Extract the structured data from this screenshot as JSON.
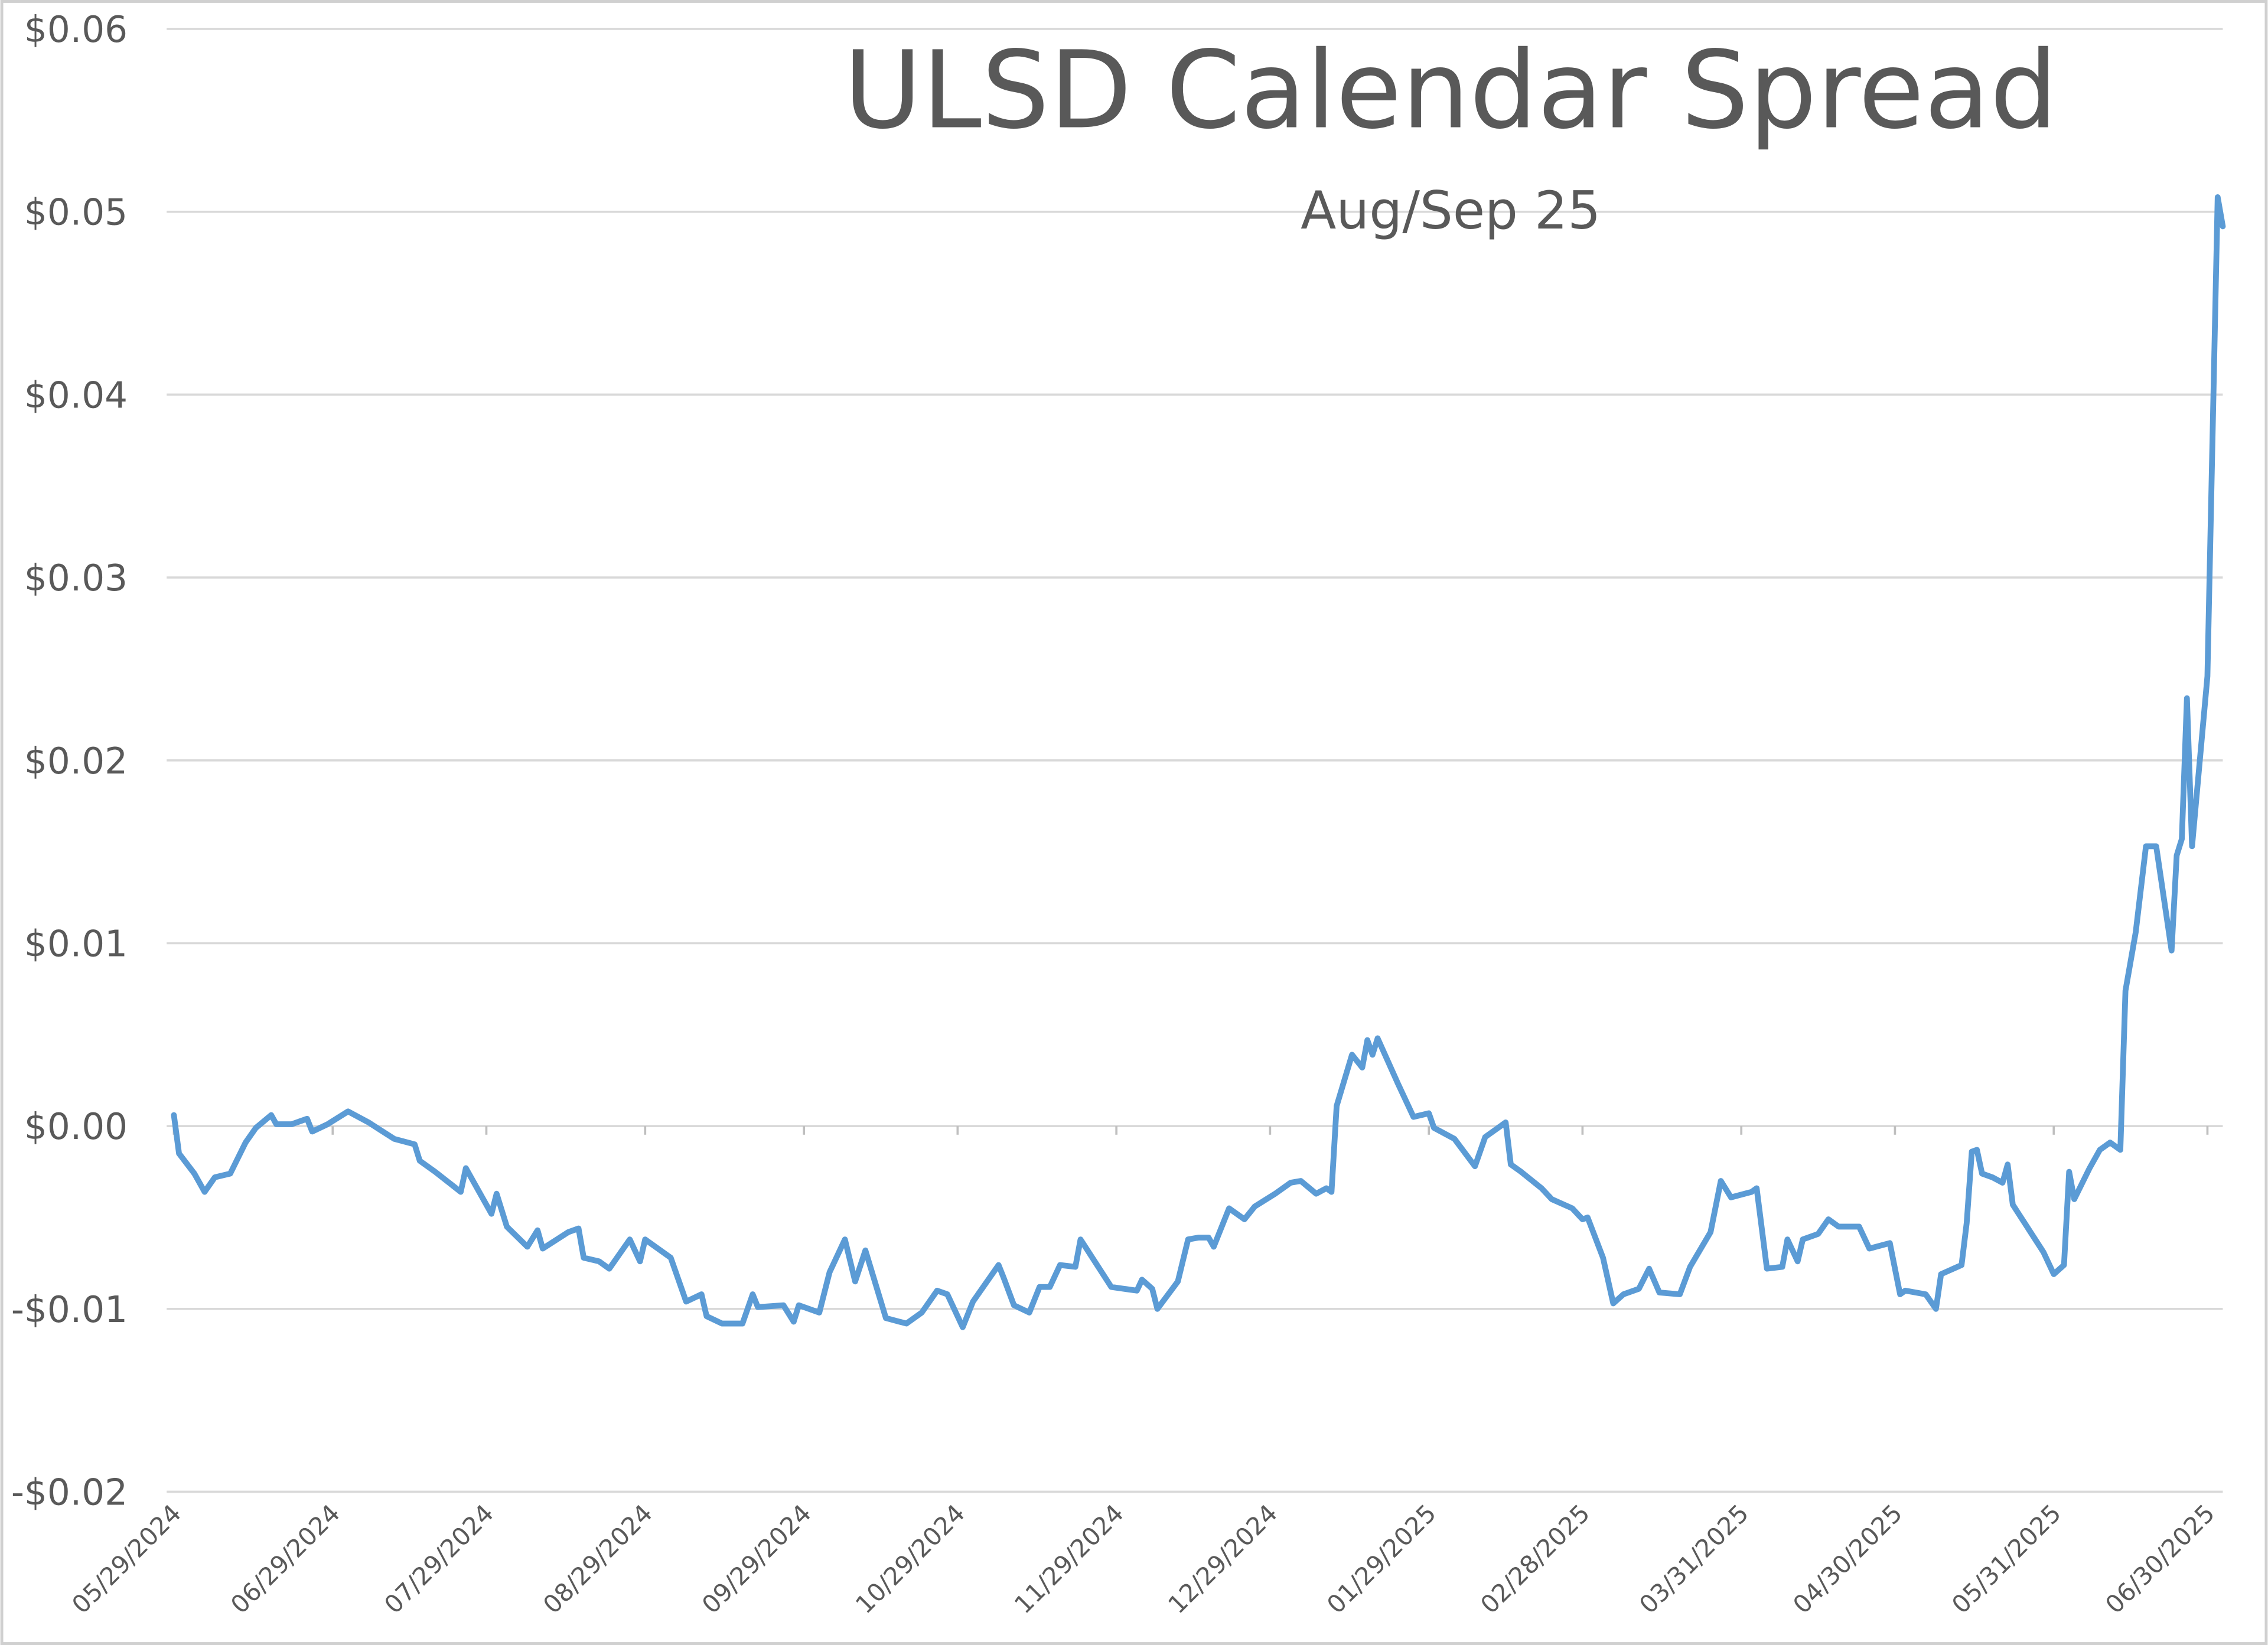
{
  "chart_data": {
    "type": "line",
    "title": "ULSD Calendar Spread",
    "subtitle": "Aug/Sep 25",
    "x": [
      "05/29/2024",
      "05/30/2024",
      "06/02/2024",
      "06/04/2024",
      "06/06/2024",
      "06/09/2024",
      "06/12/2024",
      "06/14/2024",
      "06/17/2024",
      "06/18/2024",
      "06/21/2024",
      "06/24/2024",
      "06/25/2024",
      "06/28/2024",
      "07/02/2024",
      "07/06/2024",
      "07/11/2024",
      "07/15/2024",
      "07/16/2024",
      "07/19/2024",
      "07/24/2024",
      "07/25/2024",
      "07/30/2024",
      "07/31/2024",
      "08/02/2024",
      "08/06/2024",
      "08/08/2024",
      "08/09/2024",
      "08/14/2024",
      "08/16/2024",
      "08/17/2024",
      "08/20/2024",
      "08/22/2024",
      "08/26/2024",
      "08/28/2024",
      "08/29/2024",
      "09/03/2024",
      "09/06/2024",
      "09/09/2024",
      "09/10/2024",
      "09/13/2024",
      "09/17/2024",
      "09/19/2024",
      "09/20/2024",
      "09/25/2024",
      "09/27/2024",
      "09/28/2024",
      "10/02/2024",
      "10/04/2024",
      "10/07/2024",
      "10/09/2024",
      "10/11/2024",
      "10/15/2024",
      "10/19/2024",
      "10/22/2024",
      "10/25/2024",
      "10/27/2024",
      "10/30/2024",
      "11/01/2024",
      "11/06/2024",
      "11/07/2024",
      "11/09/2024",
      "11/12/2024",
      "11/14/2024",
      "11/16/2024",
      "11/18/2024",
      "11/21/2024",
      "11/22/2024",
      "11/28/2024",
      "12/03/2024",
      "12/04/2024",
      "12/06/2024",
      "12/07/2024",
      "12/11/2024",
      "12/13/2024",
      "12/15/2024",
      "12/17/2024",
      "12/18/2024",
      "12/21/2024",
      "12/24/2024",
      "12/26/2024",
      "12/30/2024",
      "01/02/2025",
      "01/04/2025",
      "01/07/2025",
      "01/09/2025",
      "01/10/2025",
      "01/11/2025",
      "01/14/2025",
      "01/16/2025",
      "01/17/2025",
      "01/18/2025",
      "01/19/2025",
      "01/23/2025",
      "01/26/2025",
      "01/29/2025",
      "01/30/2025",
      "02/03/2025",
      "02/07/2025",
      "02/09/2025",
      "02/13/2025",
      "02/14/2025",
      "02/16/2025",
      "02/20/2025",
      "02/22/2025",
      "02/26/2025",
      "02/28/2025",
      "03/01/2025",
      "03/04/2025",
      "03/06/2025",
      "03/08/2025",
      "03/11/2025",
      "03/13/2025",
      "03/15/2025",
      "03/19/2025",
      "03/21/2025",
      "03/25/2025",
      "03/27/2025",
      "03/29/2025",
      "04/02/2025",
      "04/03/2025",
      "04/05/2025",
      "04/08/2025",
      "04/09/2025",
      "04/11/2025",
      "04/12/2025",
      "04/15/2025",
      "04/17/2025",
      "04/19/2025",
      "04/23/2025",
      "04/25/2025",
      "04/29/2025",
      "05/01/2025",
      "05/02/2025",
      "05/06/2025",
      "05/08/2025",
      "05/09/2025",
      "05/13/2025",
      "05/14/2025",
      "05/15/2025",
      "05/16/2025",
      "05/17/2025",
      "05/19/2025",
      "05/21/2025",
      "05/22/2025",
      "05/23/2025",
      "05/29/2025",
      "05/31/2025",
      "06/02/2025",
      "06/03/2025",
      "06/04/2025",
      "06/07/2025",
      "06/09/2025",
      "06/11/2025",
      "06/13/2025",
      "06/14/2025",
      "06/16/2025",
      "06/18/2025",
      "06/20/2025",
      "06/23/2025",
      "06/24/2025",
      "06/25/2025",
      "06/26/2025",
      "06/27/2025",
      "06/30/2025",
      "07/02/2025",
      "07/03/2025"
    ],
    "series": [
      {
        "color": "#5b9bd5",
        "values": [
          0.0006,
          -0.0015,
          -0.0026,
          -0.0036,
          -0.0028,
          -0.0026,
          -0.0009,
          -0.0001,
          0.0006,
          0.0001,
          0.0001,
          0.0004,
          -0.0003,
          0.0001,
          0.0008,
          0.0002,
          -0.0007,
          -0.001,
          -0.0019,
          -0.0025,
          -0.0036,
          -0.0023,
          -0.0048,
          -0.0037,
          -0.0055,
          -0.0066,
          -0.0057,
          -0.0067,
          -0.0058,
          -0.0056,
          -0.0072,
          -0.0074,
          -0.0078,
          -0.0062,
          -0.0074,
          -0.0062,
          -0.0072,
          -0.0096,
          -0.0092,
          -0.0104,
          -0.0108,
          -0.0108,
          -0.0092,
          -0.0099,
          -0.0098,
          -0.0107,
          -0.0098,
          -0.0102,
          -0.008,
          -0.0062,
          -0.0085,
          -0.0068,
          -0.0105,
          -0.0108,
          -0.0102,
          -0.009,
          -0.0092,
          -0.011,
          -0.0096,
          -0.0076,
          -0.0083,
          -0.0098,
          -0.0102,
          -0.0088,
          -0.0088,
          -0.0076,
          -0.0077,
          -0.0062,
          -0.0088,
          -0.009,
          -0.0084,
          -0.0089,
          -0.01,
          -0.0085,
          -0.0062,
          -0.0061,
          -0.0061,
          -0.0066,
          -0.0045,
          -0.0051,
          -0.0044,
          -0.0037,
          -0.0031,
          -0.003,
          -0.0037,
          -0.0034,
          -0.0036,
          0.0011,
          0.0039,
          0.0032,
          0.0047,
          0.0039,
          0.0048,
          0.0023,
          0.0005,
          0.0007,
          -0.0001,
          -0.0007,
          -0.0022,
          -0.0006,
          0.0002,
          -0.0021,
          -0.0025,
          -0.0034,
          -0.004,
          -0.0045,
          -0.0051,
          -0.005,
          -0.0072,
          -0.0097,
          -0.0092,
          -0.0089,
          -0.0078,
          -0.0091,
          -0.0092,
          -0.0077,
          -0.0058,
          -0.003,
          -0.0039,
          -0.0036,
          -0.0034,
          -0.0078,
          -0.0077,
          -0.0062,
          -0.0074,
          -0.0062,
          -0.0059,
          -0.0051,
          -0.0055,
          -0.0055,
          -0.0067,
          -0.0064,
          -0.0092,
          -0.009,
          -0.0092,
          -0.01,
          -0.0081,
          -0.0076,
          -0.0053,
          -0.0014,
          -0.0013,
          -0.0026,
          -0.0028,
          -0.0031,
          -0.0021,
          -0.0043,
          -0.0069,
          -0.0081,
          -0.0076,
          -0.0025,
          -0.004,
          -0.0023,
          -0.0013,
          -0.0009,
          -0.0013,
          0.0074,
          0.0106,
          0.0153,
          0.0153,
          0.0096,
          0.0148,
          0.0157,
          0.0234,
          0.0153,
          0.0246,
          0.0508,
          0.0492
        ]
      }
    ],
    "xlim": [
      "05/29/2024",
      "07/03/2025"
    ],
    "xticks": [
      "05/29/2024",
      "06/29/2024",
      "07/29/2024",
      "08/29/2024",
      "09/29/2024",
      "10/29/2024",
      "11/29/2024",
      "12/29/2024",
      "01/29/2025",
      "02/28/2025",
      "03/31/2025",
      "04/30/2025",
      "05/31/2025",
      "06/30/2025"
    ],
    "ylim": [
      -0.02,
      0.06
    ],
    "yticks": [
      {
        "value": -0.02,
        "label": "-$0.02"
      },
      {
        "value": -0.01,
        "label": "-$0.01"
      },
      {
        "value": 0,
        "label": "$0.00"
      },
      {
        "value": 0.01,
        "label": "$0.01"
      },
      {
        "value": 0.02,
        "label": "$0.02"
      },
      {
        "value": 0.03,
        "label": "$0.03"
      },
      {
        "value": 0.04,
        "label": "$0.04"
      },
      {
        "value": 0.05,
        "label": "$0.05"
      },
      {
        "value": 0.06,
        "label": "$0.06"
      }
    ],
    "grid": true
  }
}
